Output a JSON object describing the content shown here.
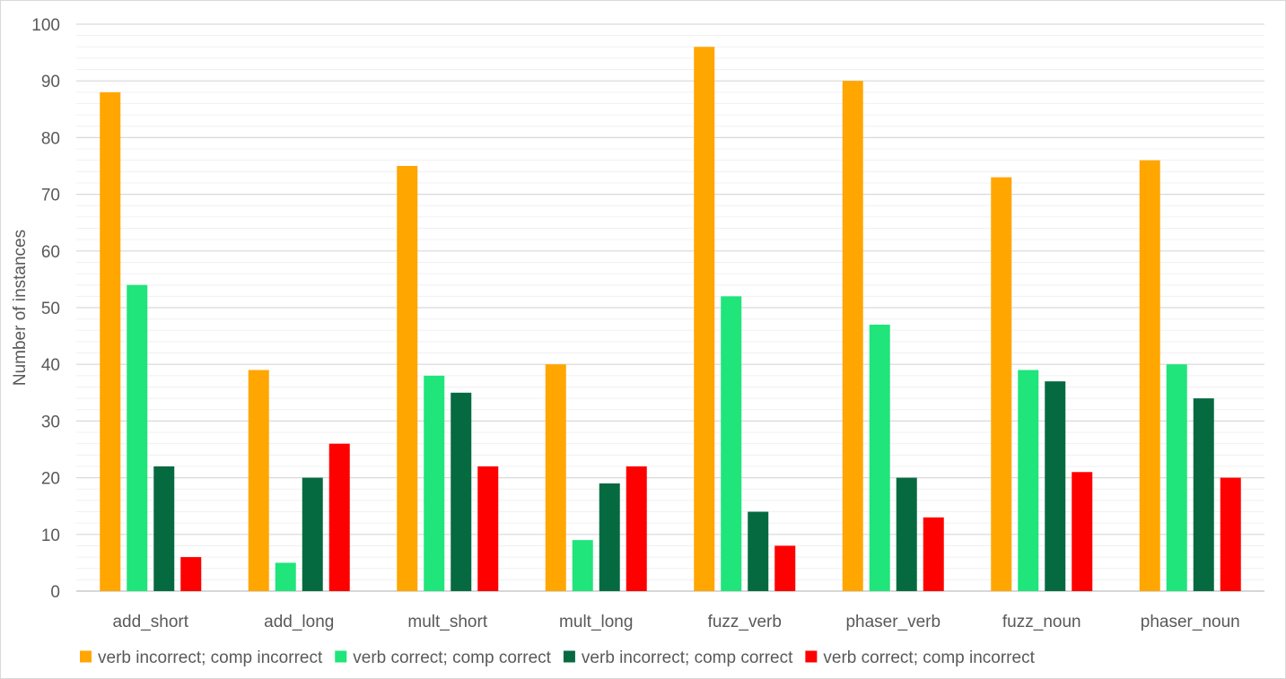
{
  "chart_data": {
    "type": "bar",
    "title": "",
    "xlabel": "",
    "ylabel": "Number of instances",
    "ylim": [
      0,
      100
    ],
    "y_major_ticks": [
      0,
      10,
      20,
      30,
      40,
      50,
      60,
      70,
      80,
      90,
      100
    ],
    "y_minor_step": 2,
    "grid": true,
    "legend_position": "bottom",
    "categories": [
      "add_short",
      "add_long",
      "mult_short",
      "mult_long",
      "fuzz_verb",
      "phaser_verb",
      "fuzz_noun",
      "phaser_noun"
    ],
    "series": [
      {
        "name": "verb incorrect; comp incorrect",
        "color": "#FFA600",
        "values": [
          88,
          39,
          75,
          40,
          96,
          90,
          73,
          76
        ]
      },
      {
        "name": "verb correct; comp correct",
        "color": "#1FE57A",
        "values": [
          54,
          5,
          38,
          9,
          52,
          47,
          39,
          40
        ]
      },
      {
        "name": "verb incorrect; comp correct",
        "color": "#066A41",
        "values": [
          22,
          20,
          35,
          19,
          14,
          20,
          37,
          34
        ]
      },
      {
        "name": "verb correct; comp incorrect",
        "color": "#FF0000",
        "values": [
          6,
          26,
          22,
          22,
          8,
          13,
          21,
          20
        ]
      }
    ]
  }
}
